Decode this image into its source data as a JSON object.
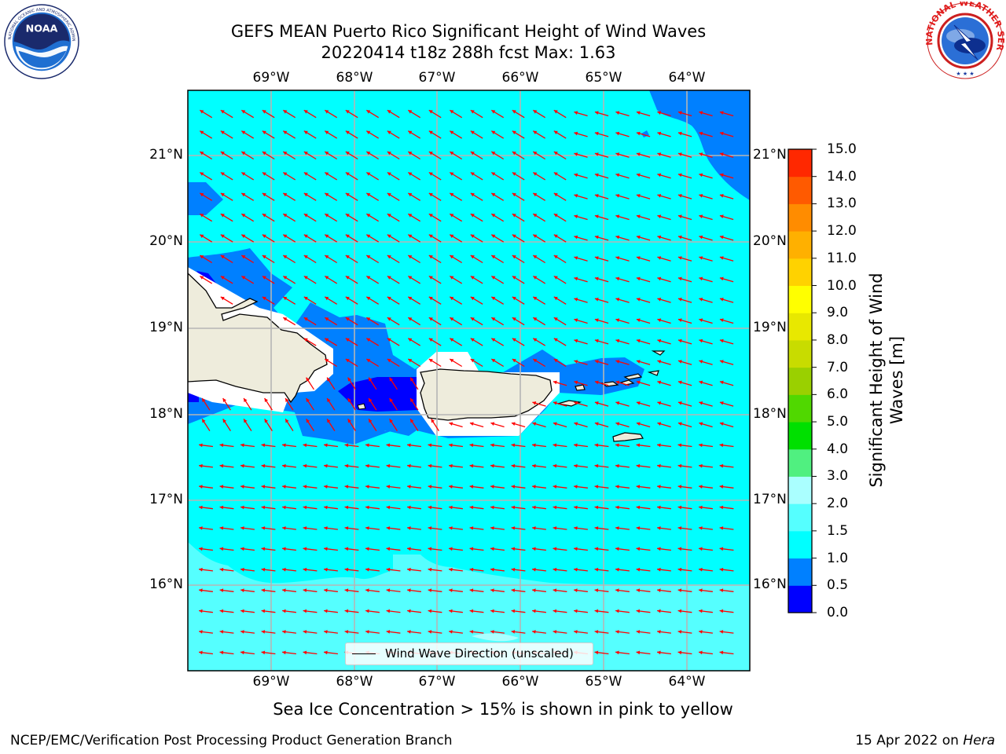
{
  "title": {
    "line1": "GEFS MEAN Puerto Rico Significant Height of Wind Waves",
    "line2": "20220414 t18z 288h fcst   Max: 1.63"
  },
  "logos": {
    "left": "noaa-logo",
    "right": "national-weather-service-logo",
    "left_text": "NOAA",
    "left_ring_text": "NATIONAL OCEANIC AND ATMOSPHERIC ADMINISTRATION · U.S. DEPARTMENT OF COMMERCE",
    "right_ring_text": "NATIONAL WEATHER SERVICE"
  },
  "map": {
    "lon_labels": [
      "69°W",
      "68°W",
      "67°W",
      "66°W",
      "65°W",
      "64°W"
    ],
    "lat_labels": [
      "21°N",
      "20°N",
      "19°N",
      "18°N",
      "17°N",
      "16°N"
    ],
    "extent": {
      "lon_min": -70.0,
      "lon_max": -63.25,
      "lat_min": 15.0,
      "lat_max": 21.75
    },
    "projection": "mercator",
    "gridlines": true,
    "ocean_color": "#00ffff",
    "land_color": "#eeecdc",
    "wind_arrow_color": "#ff0000",
    "dominant_wave_direction": "toward west / west-southwest",
    "legend": {
      "entry": "Wind Wave Direction (unscaled)",
      "placement": "bottom-center"
    }
  },
  "colorbar": {
    "title": "Significant Height of Wind Waves [m]",
    "ticks": [
      "0.0",
      "0.5",
      "1.0",
      "1.5",
      "2.0",
      "3.0",
      "4.0",
      "5.0",
      "6.0",
      "7.0",
      "8.0",
      "9.0",
      "10.0",
      "11.0",
      "12.0",
      "13.0",
      "14.0",
      "15.0"
    ],
    "colors": [
      "#0000ff",
      "#0080ff",
      "#00ffff",
      "#55ffff",
      "#aaffff",
      "#50f080",
      "#00e000",
      "#50d800",
      "#9ad000",
      "#c8dc00",
      "#e8e800",
      "#ffff00",
      "#ffd200",
      "#ffb000",
      "#ff8c00",
      "#ff5a00",
      "#ff2800"
    ]
  },
  "note": "Sea Ice Concentration > 15% is shown in pink to yellow",
  "footer": {
    "left": "NCEP/EMC/Verification Post Processing Product Generation Branch",
    "right_date": "15 Apr 2022 on ",
    "right_machine": "Hera"
  }
}
